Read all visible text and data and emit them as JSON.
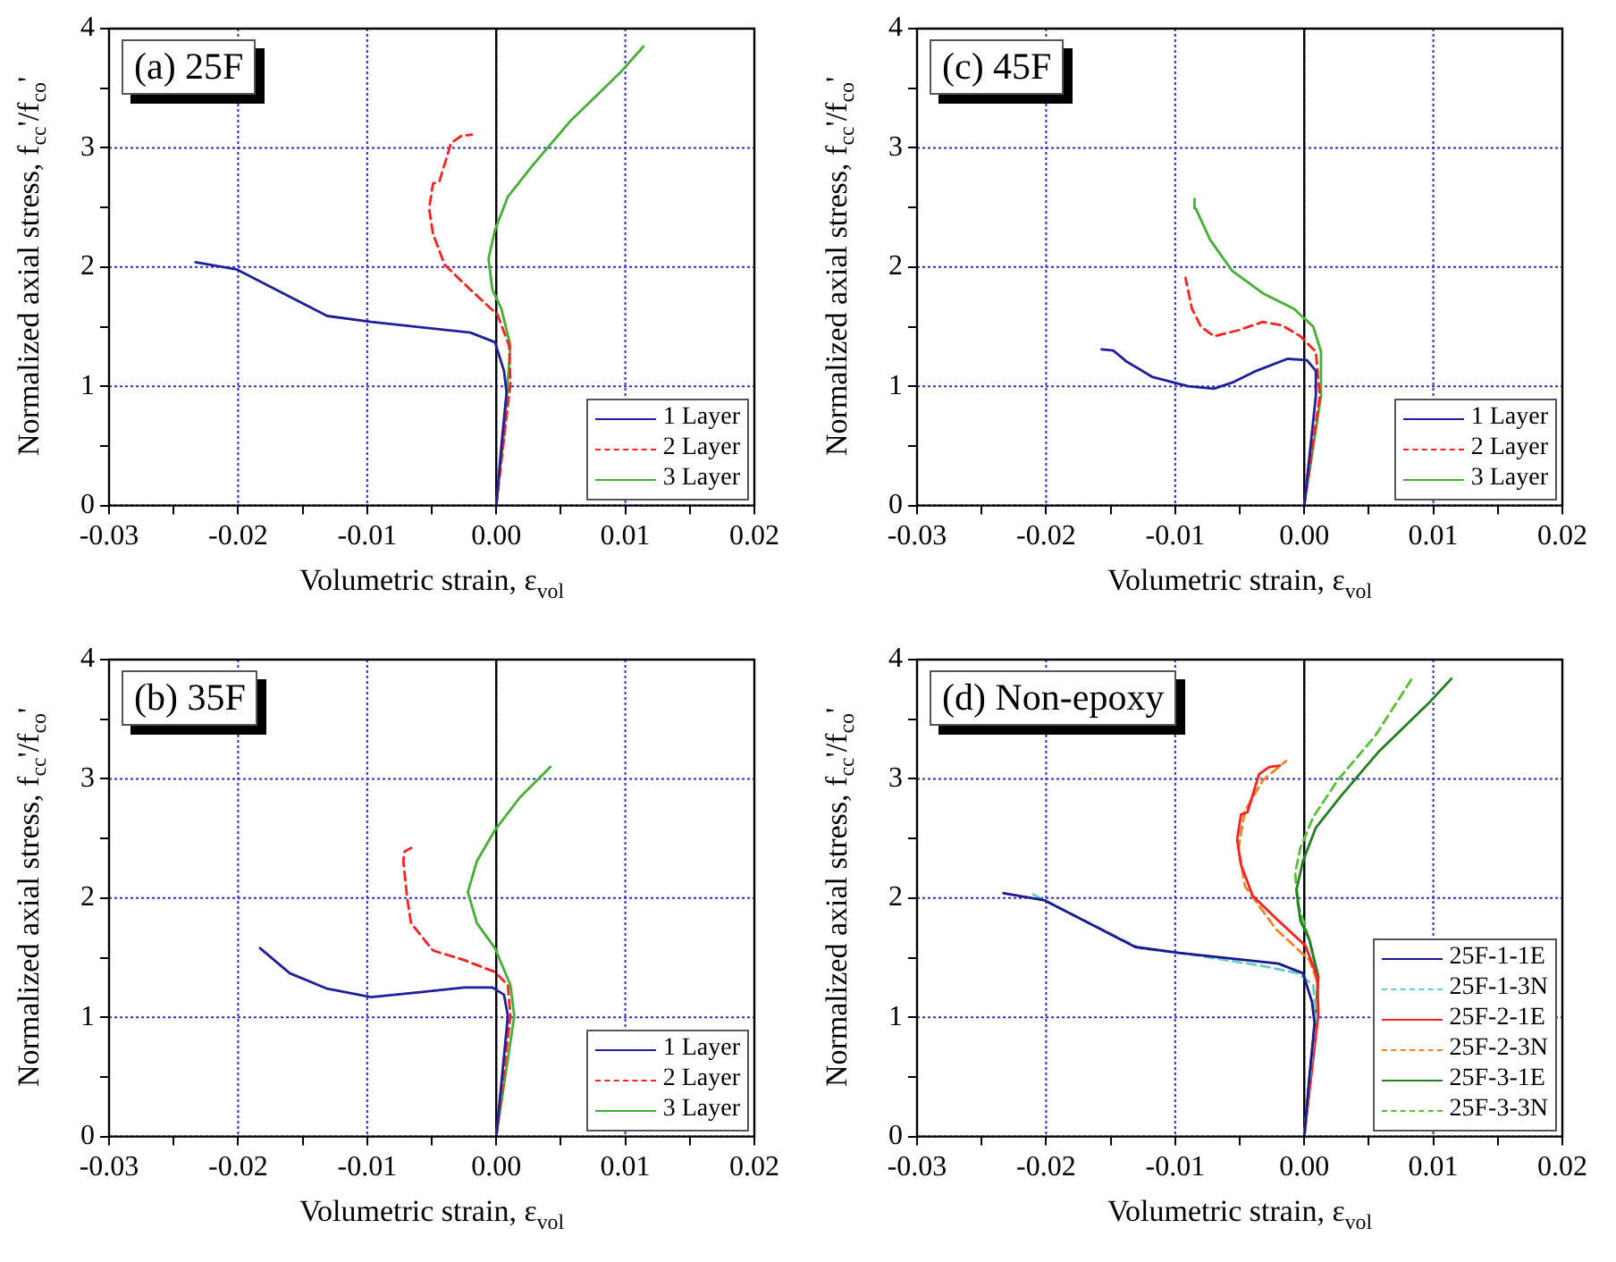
{
  "chart_data": [
    {
      "type": "line",
      "title": "(a) 25F",
      "xlabel": "Volumetric strain, ε$_{vol}$",
      "ylabel": "Normalized axial stress, f$_{cc}$'/f$_{co}$'",
      "xlim": [
        -0.03,
        0.02
      ],
      "ylim": [
        0,
        4
      ],
      "xticks": [
        -0.03,
        {
          "value": -0.025,
          "label": null
        },
        -0.02,
        {
          "value": -0.015,
          "label": null
        },
        -0.01,
        {
          "value": -0.005,
          "label": null
        },
        {
          "value": 0,
          "label": "0.00"
        },
        {
          "value": 0.005,
          "label": null
        },
        0.01,
        {
          "value": 0.015,
          "label": null
        },
        0.02
      ],
      "yticks": [
        0,
        {
          "value": 0.5,
          "label": null
        },
        1,
        {
          "value": 1.5,
          "label": null
        },
        2,
        {
          "value": 2.5,
          "label": null
        },
        3,
        {
          "value": 3.5,
          "label": null
        },
        4
      ],
      "grid": true,
      "legend": "bottom right",
      "ref_lines": [
        {
          "axis": "x",
          "value": 0,
          "color": "#000000"
        }
      ],
      "series": [
        {
          "name": "1 Layer",
          "color": "#1f1f9a",
          "line_style": "solid",
          "x": [
            0,
            0.0004,
            0.0008,
            0.0006,
            -0.0001,
            -0.002,
            -0.0097,
            -0.0131,
            -0.0201,
            -0.0233
          ],
          "values": [
            0,
            0.5,
            0.95,
            1.13,
            1.37,
            1.45,
            1.54,
            1.59,
            1.98,
            2.04
          ]
        },
        {
          "name": "2 Layer",
          "color": "#ff2020",
          "line_style": "dashed",
          "x": [
            0,
            0.0011,
            0.001,
            0.0001,
            -0.002,
            -0.004,
            -0.0049,
            -0.0052,
            -0.0049,
            -0.0044,
            -0.0035,
            -0.0027,
            -0.0019
          ],
          "values": [
            0,
            1.03,
            1.34,
            1.6,
            1.81,
            2.02,
            2.28,
            2.49,
            2.7,
            2.72,
            3.04,
            3.1,
            3.11
          ]
        },
        {
          "name": "3 Layer",
          "color": "#44b034",
          "line_style": "solid",
          "x": [
            0,
            0.0006,
            0.0011,
            0.0004,
            -0.0003,
            -0.0006,
            -0.0001,
            0.0009,
            0.0028,
            0.0057,
            0.0096,
            0.0114
          ],
          "values": [
            0,
            0.61,
            1.34,
            1.65,
            1.81,
            2.07,
            2.31,
            2.59,
            2.85,
            3.22,
            3.63,
            3.85
          ]
        }
      ]
    },
    {
      "type": "line",
      "title": "(c) 45F",
      "xlabel": "Volumetric strain, ε$_{vol}$",
      "ylabel": "Normalized axial stress, f$_{cc}$'/f$_{co}$'",
      "xlim": [
        -0.03,
        0.02
      ],
      "ylim": [
        0,
        4
      ],
      "xticks": [
        -0.03,
        {
          "value": -0.025,
          "label": null
        },
        -0.02,
        {
          "value": -0.015,
          "label": null
        },
        -0.01,
        {
          "value": -0.005,
          "label": null
        },
        {
          "value": 0,
          "label": "0.00"
        },
        {
          "value": 0.005,
          "label": null
        },
        0.01,
        {
          "value": 0.015,
          "label": null
        },
        0.02
      ],
      "yticks": [
        0,
        {
          "value": 0.5,
          "label": null
        },
        1,
        {
          "value": 1.5,
          "label": null
        },
        2,
        {
          "value": 2.5,
          "label": null
        },
        3,
        {
          "value": 3.5,
          "label": null
        },
        4
      ],
      "grid": true,
      "legend": "bottom right",
      "ref_lines": [
        {
          "axis": "x",
          "value": 0,
          "color": "#000000"
        }
      ],
      "series": [
        {
          "name": "1 Layer",
          "color": "#1f1f9a",
          "line_style": "solid",
          "x": [
            0,
            0.0009,
            0.0009,
            0.0002,
            -0.0013,
            -0.0037,
            -0.0056,
            -0.007,
            -0.009,
            -0.0118,
            -0.0138,
            -0.0148,
            -0.0157
          ],
          "values": [
            0,
            0.92,
            1.13,
            1.22,
            1.23,
            1.13,
            1.03,
            0.98,
            1.0,
            1.08,
            1.21,
            1.3,
            1.31
          ]
        },
        {
          "name": "2 Layer",
          "color": "#ff2020",
          "line_style": "dashed",
          "x": [
            0,
            0.0012,
            0.0009,
            -0.0003,
            -0.0017,
            -0.0032,
            -0.0051,
            -0.007,
            -0.008,
            -0.0087,
            -0.0092
          ],
          "values": [
            0,
            0.92,
            1.29,
            1.42,
            1.51,
            1.54,
            1.47,
            1.42,
            1.5,
            1.65,
            1.91
          ]
        },
        {
          "name": "3 Layer",
          "color": "#44b034",
          "line_style": "solid",
          "x": [
            0,
            0.0013,
            0.0013,
            0.0007,
            -0.0008,
            -0.0032,
            -0.0056,
            -0.0073,
            -0.0084,
            -0.0085
          ],
          "values": [
            0,
            0.92,
            1.29,
            1.5,
            1.65,
            1.78,
            1.97,
            2.23,
            2.49,
            2.57
          ]
        }
      ]
    },
    {
      "type": "line",
      "title": "(b) 35F",
      "xlabel": "Volumetric strain, ε$_{vol}$",
      "ylabel": "Normalized axial stress, f$_{cc}$'/f$_{co}$'",
      "xlim": [
        -0.03,
        0.02
      ],
      "ylim": [
        0,
        4
      ],
      "xticks": [
        -0.03,
        {
          "value": -0.025,
          "label": null
        },
        -0.02,
        {
          "value": -0.015,
          "label": null
        },
        -0.01,
        {
          "value": -0.005,
          "label": null
        },
        {
          "value": 0,
          "label": "0.00"
        },
        {
          "value": 0.005,
          "label": null
        },
        0.01,
        {
          "value": 0.015,
          "label": null
        },
        0.02
      ],
      "yticks": [
        0,
        {
          "value": 0.5,
          "label": null
        },
        1,
        {
          "value": 1.5,
          "label": null
        },
        2,
        {
          "value": 2.5,
          "label": null
        },
        3,
        {
          "value": 3.5,
          "label": null
        },
        4
      ],
      "grid": true,
      "legend": "bottom right",
      "ref_lines": [
        {
          "axis": "x",
          "value": 0,
          "color": "#000000"
        }
      ],
      "series": [
        {
          "name": "1 Layer",
          "color": "#1f1f9a",
          "line_style": "solid",
          "x": [
            0,
            0.0009,
            0.0006,
            -0.0003,
            -0.0025,
            -0.0059,
            -0.0097,
            -0.0131,
            -0.016,
            -0.0183
          ],
          "values": [
            0,
            1.01,
            1.19,
            1.25,
            1.25,
            1.21,
            1.17,
            1.24,
            1.37,
            1.58
          ]
        },
        {
          "name": "2 Layer",
          "color": "#ff2020",
          "line_style": "dashed",
          "x": [
            0,
            0.0011,
            0.0009,
            -0.0001,
            -0.0025,
            -0.0049,
            -0.0066,
            -0.0069,
            -0.0072,
            -0.0071,
            -0.0066
          ],
          "values": [
            0,
            1.01,
            1.27,
            1.38,
            1.48,
            1.56,
            1.79,
            2.0,
            2.31,
            2.39,
            2.42
          ]
        },
        {
          "name": "3 Layer",
          "color": "#44b034",
          "line_style": "solid",
          "x": [
            0,
            0.0014,
            0.0011,
            -0.0001,
            -0.0015,
            -0.0022,
            -0.0015,
            -0.0001,
            0.0018,
            0.0042
          ],
          "values": [
            0,
            1.01,
            1.27,
            1.58,
            1.79,
            2.05,
            2.31,
            2.57,
            2.84,
            3.1
          ]
        }
      ]
    },
    {
      "type": "line",
      "title": "(d) Non-epoxy",
      "xlabel": "Volumetric strain, ε$_{vol}$",
      "ylabel": "Normalized axial stress, f$_{cc}$'/f$_{co}$'",
      "xlim": [
        -0.03,
        0.02
      ],
      "ylim": [
        0,
        4
      ],
      "xticks": [
        -0.03,
        {
          "value": -0.025,
          "label": null
        },
        -0.02,
        {
          "value": -0.015,
          "label": null
        },
        -0.01,
        {
          "value": -0.005,
          "label": null
        },
        {
          "value": 0,
          "label": "0.00"
        },
        {
          "value": 0.005,
          "label": null
        },
        0.01,
        {
          "value": 0.015,
          "label": null
        },
        0.02
      ],
      "yticks": [
        0,
        {
          "value": 0.5,
          "label": null
        },
        1,
        {
          "value": 1.5,
          "label": null
        },
        2,
        {
          "value": 2.5,
          "label": null
        },
        3,
        {
          "value": 3.5,
          "label": null
        },
        4
      ],
      "grid": true,
      "legend": "bottom right",
      "ref_lines": [
        {
          "axis": "x",
          "value": 0,
          "color": "#000000"
        }
      ],
      "series": [
        {
          "name": "25F-1-1E",
          "color": "#1a1a8a",
          "line_style": "solid",
          "x": [
            0,
            0.0004,
            0.0008,
            0.0006,
            -0.0001,
            -0.002,
            -0.0097,
            -0.0131,
            -0.0201,
            -0.0233
          ],
          "values": [
            0,
            0.5,
            0.95,
            1.13,
            1.37,
            1.45,
            1.54,
            1.59,
            1.98,
            2.04
          ]
        },
        {
          "name": "25F-1-3N",
          "color": "#66cccc",
          "line_style": "dashed",
          "x": [
            0,
            0.0009,
            0.0007,
            -0.0005,
            -0.0032,
            -0.009,
            -0.0128,
            -0.021
          ],
          "values": [
            0,
            1.01,
            1.27,
            1.37,
            1.43,
            1.53,
            1.58,
            2.03
          ]
        },
        {
          "name": "25F-2-1E",
          "color": "#ff2020",
          "line_style": "solid",
          "x": [
            0,
            0.0011,
            0.001,
            0.0001,
            -0.002,
            -0.004,
            -0.0049,
            -0.0052,
            -0.0049,
            -0.0044,
            -0.0035,
            -0.0027,
            -0.0019
          ],
          "values": [
            0,
            1.03,
            1.34,
            1.6,
            1.81,
            2.02,
            2.28,
            2.49,
            2.7,
            2.72,
            3.04,
            3.1,
            3.11
          ]
        },
        {
          "name": "25F-2-3N",
          "color": "#ff8020",
          "line_style": "dashed",
          "x": [
            0,
            0.0011,
            0.0004,
            -0.0022,
            -0.0046,
            -0.0051,
            -0.0046,
            -0.0032,
            -0.0014
          ],
          "values": [
            0,
            1.27,
            1.48,
            1.74,
            2.1,
            2.42,
            2.73,
            2.99,
            3.15
          ]
        },
        {
          "name": "25F-3-1E",
          "color": "#208020",
          "line_style": "solid",
          "x": [
            0,
            0.0006,
            0.0011,
            0.0004,
            -0.0003,
            -0.0006,
            -0.0001,
            0.0009,
            0.0028,
            0.0057,
            0.0096,
            0.0114
          ],
          "values": [
            0,
            0.61,
            1.34,
            1.65,
            1.81,
            2.07,
            2.31,
            2.59,
            2.85,
            3.22,
            3.63,
            3.84
          ]
        },
        {
          "name": "25F-3-3N",
          "color": "#55c035",
          "line_style": "dashed",
          "x": [
            0,
            0.0011,
            0.0004,
            -0.0005,
            -0.0007,
            -0.0003,
            0.0007,
            0.0026,
            0.0055,
            0.0084
          ],
          "values": [
            0,
            1.3,
            1.65,
            1.95,
            2.21,
            2.42,
            2.68,
            2.99,
            3.36,
            3.85
          ]
        }
      ]
    }
  ]
}
